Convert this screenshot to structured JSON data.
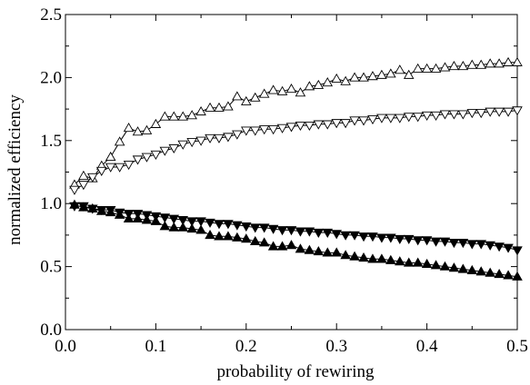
{
  "chart_data": {
    "type": "line",
    "title": "",
    "xlabel": "probability of rewiring",
    "ylabel": "normalized efficiency",
    "xlim": [
      0.0,
      0.5
    ],
    "ylim": [
      0.0,
      2.5
    ],
    "x_ticks": [
      0.0,
      0.1,
      0.2,
      0.3,
      0.4,
      0.5
    ],
    "y_ticks": [
      0.0,
      0.5,
      1.0,
      1.5,
      2.0,
      2.5
    ],
    "x_tick_labels": [
      "0.0",
      "0.1",
      "0.2",
      "0.3",
      "0.4",
      "0.5"
    ],
    "y_tick_labels": [
      "0.0",
      "0.5",
      "1.0",
      "1.5",
      "2.0",
      "2.5"
    ],
    "grid": false,
    "legend": "none",
    "x": [
      0.01,
      0.02,
      0.03,
      0.04,
      0.05,
      0.06,
      0.07,
      0.08,
      0.09,
      0.1,
      0.11,
      0.12,
      0.13,
      0.14,
      0.15,
      0.16,
      0.17,
      0.18,
      0.19,
      0.2,
      0.21,
      0.22,
      0.23,
      0.24,
      0.25,
      0.26,
      0.27,
      0.28,
      0.29,
      0.3,
      0.31,
      0.32,
      0.33,
      0.34,
      0.35,
      0.36,
      0.37,
      0.38,
      0.39,
      0.4,
      0.41,
      0.42,
      0.43,
      0.44,
      0.45,
      0.46,
      0.47,
      0.48,
      0.49,
      0.5
    ],
    "series": [
      {
        "marker": "open-triangle-up",
        "values": [
          1.15,
          1.22,
          1.2,
          1.3,
          1.37,
          1.49,
          1.6,
          1.57,
          1.58,
          1.63,
          1.69,
          1.69,
          1.69,
          1.7,
          1.73,
          1.76,
          1.76,
          1.77,
          1.85,
          1.81,
          1.84,
          1.87,
          1.9,
          1.89,
          1.91,
          1.88,
          1.93,
          1.94,
          1.96,
          1.99,
          1.97,
          2.0,
          2.0,
          2.01,
          2.02,
          2.03,
          2.06,
          2.02,
          2.07,
          2.07,
          2.07,
          2.08,
          2.09,
          2.09,
          2.1,
          2.1,
          2.11,
          2.11,
          2.12,
          2.12
        ]
      },
      {
        "marker": "open-triangle-down",
        "values": [
          1.11,
          1.15,
          1.21,
          1.26,
          1.29,
          1.29,
          1.31,
          1.35,
          1.37,
          1.39,
          1.42,
          1.44,
          1.47,
          1.49,
          1.5,
          1.52,
          1.52,
          1.53,
          1.55,
          1.58,
          1.58,
          1.59,
          1.59,
          1.6,
          1.61,
          1.62,
          1.62,
          1.63,
          1.63,
          1.64,
          1.64,
          1.66,
          1.66,
          1.67,
          1.68,
          1.68,
          1.68,
          1.69,
          1.69,
          1.7,
          1.7,
          1.71,
          1.71,
          1.71,
          1.72,
          1.72,
          1.73,
          1.73,
          1.73,
          1.74
        ]
      },
      {
        "marker": "filled-triangle-down",
        "values": [
          0.98,
          0.98,
          0.96,
          0.95,
          0.95,
          0.93,
          0.92,
          0.92,
          0.91,
          0.9,
          0.89,
          0.88,
          0.87,
          0.86,
          0.86,
          0.85,
          0.84,
          0.84,
          0.83,
          0.82,
          0.81,
          0.81,
          0.8,
          0.79,
          0.79,
          0.78,
          0.78,
          0.77,
          0.77,
          0.76,
          0.75,
          0.75,
          0.74,
          0.74,
          0.73,
          0.73,
          0.72,
          0.72,
          0.71,
          0.71,
          0.7,
          0.7,
          0.69,
          0.69,
          0.68,
          0.68,
          0.67,
          0.66,
          0.65,
          0.63
        ]
      },
      {
        "marker": "filled-triangle-up",
        "values": [
          0.99,
          0.97,
          0.96,
          0.94,
          0.93,
          0.91,
          0.88,
          0.88,
          0.87,
          0.86,
          0.82,
          0.81,
          0.81,
          0.8,
          0.79,
          0.75,
          0.74,
          0.74,
          0.73,
          0.72,
          0.7,
          0.69,
          0.66,
          0.66,
          0.67,
          0.64,
          0.63,
          0.62,
          0.61,
          0.61,
          0.59,
          0.58,
          0.57,
          0.56,
          0.56,
          0.55,
          0.54,
          0.53,
          0.53,
          0.52,
          0.51,
          0.5,
          0.49,
          0.48,
          0.47,
          0.46,
          0.45,
          0.44,
          0.43,
          0.42
        ]
      }
    ]
  }
}
